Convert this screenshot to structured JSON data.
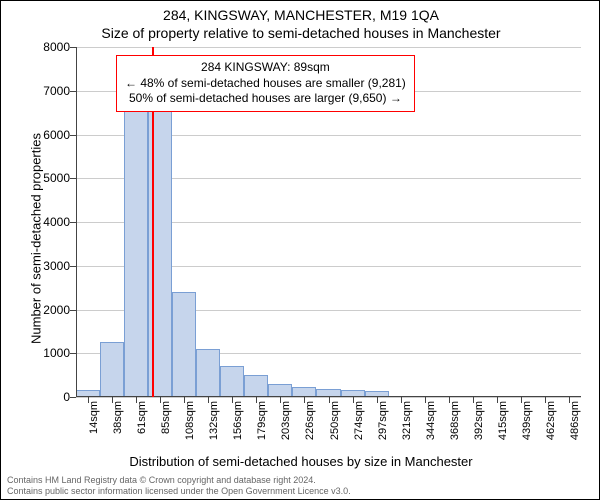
{
  "title_address": "284, KINGSWAY, MANCHESTER, M19 1QA",
  "title_sub": "Size of property relative to semi-detached houses in Manchester",
  "ylabel": "Number of semi-detached properties",
  "xlabel": "Distribution of semi-detached houses by size in Manchester",
  "footer_line1": "Contains HM Land Registry data © Crown copyright and database right 2024.",
  "footer_line2": "Contains public sector information licensed under the Open Government Licence v3.0.",
  "info_heading": "284 KINGSWAY: 89sqm",
  "info_smaller": "← 48% of semi-detached houses are smaller (9,281)",
  "info_larger": "50% of semi-detached houses are larger (9,650) →",
  "chart": {
    "type": "histogram",
    "ylim": [
      0,
      8000
    ],
    "ytick_step": 1000,
    "xrange": [
      14,
      510
    ],
    "values": [
      150,
      1250,
      6700,
      6800,
      2400,
      1100,
      700,
      500,
      300,
      220,
      180,
      150,
      130,
      0,
      0,
      0,
      0,
      0,
      0,
      0,
      0
    ],
    "xtick_labels": [
      "14sqm",
      "38sqm",
      "61sqm",
      "85sqm",
      "108sqm",
      "132sqm",
      "156sqm",
      "179sqm",
      "203sqm",
      "226sqm",
      "250sqm",
      "274sqm",
      "297sqm",
      "321sqm",
      "344sqm",
      "368sqm",
      "392sqm",
      "415sqm",
      "439sqm",
      "462sqm",
      "486sqm"
    ],
    "bar_fill": "#c6d5ec",
    "bar_stroke": "#7a9fd4",
    "grid_color": "#cccccc",
    "marker_value": 89,
    "marker_color": "#ff0000",
    "background": "#ffffff",
    "title_fontsize": 14,
    "label_fontsize": 13,
    "tick_fontsize": 12
  }
}
